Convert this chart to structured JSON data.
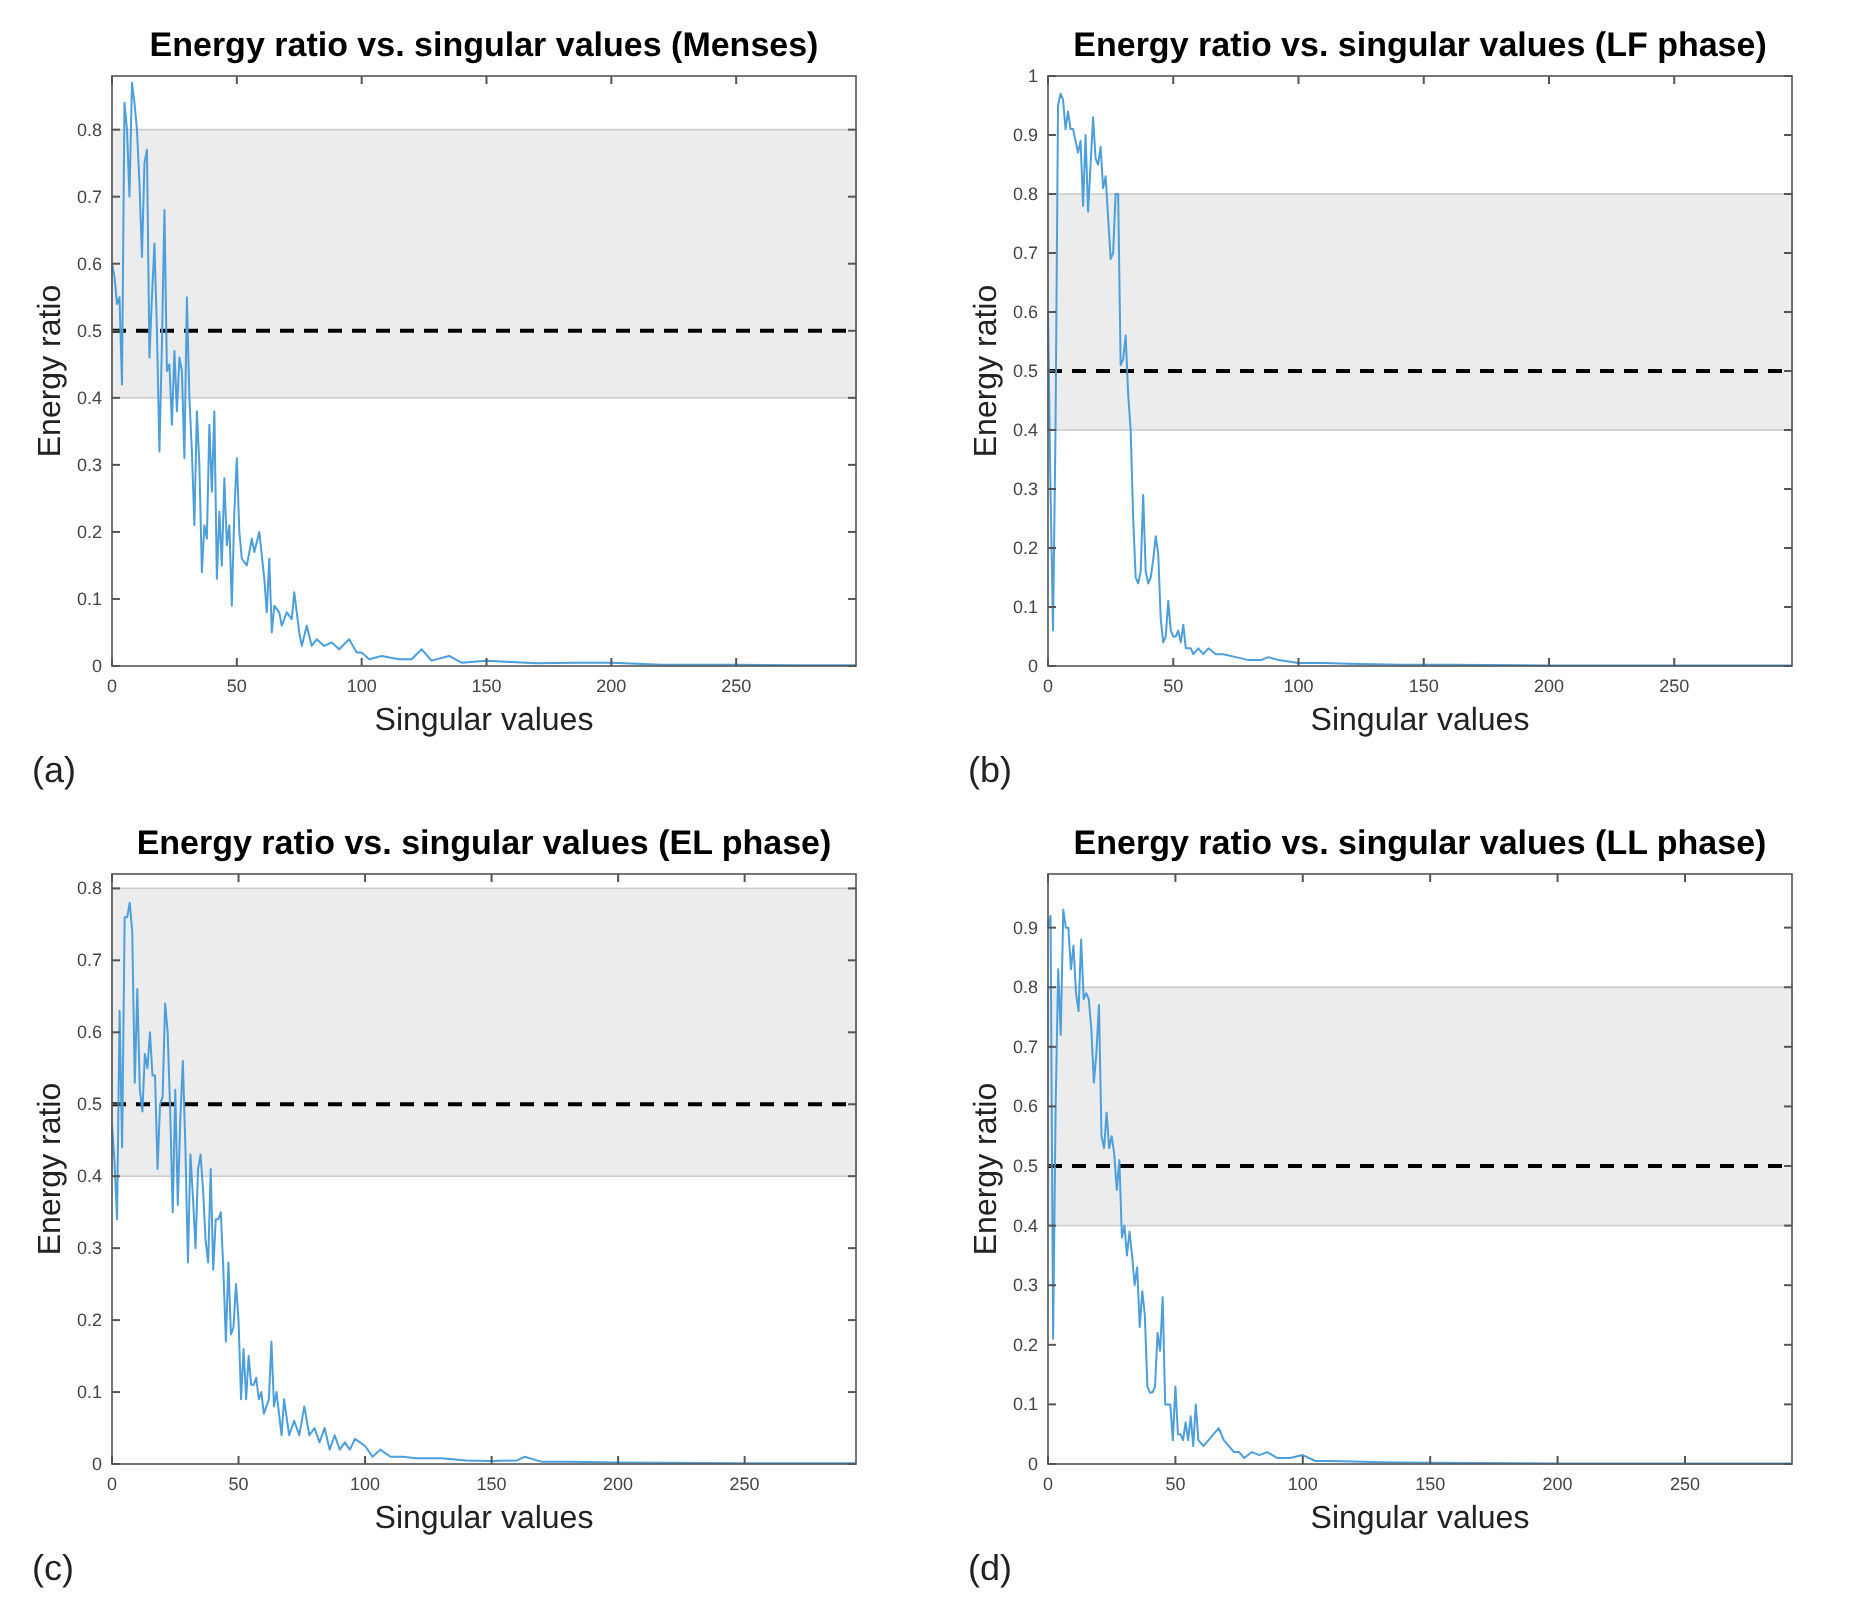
{
  "chart_data": [
    {
      "type": "line",
      "title": "Energy ratio vs. singular values (Menses)",
      "xlabel": "Singular values",
      "ylabel": "Energy ratio",
      "annotations": [
        "(a)"
      ],
      "xlim": [
        0,
        298
      ],
      "ylim": [
        0,
        0.88
      ],
      "xticks": [
        0,
        50,
        100,
        150,
        200,
        250
      ],
      "yticks": [
        0,
        0.1,
        0.2,
        0.3,
        0.4,
        0.5,
        0.6,
        0.7,
        0.8
      ],
      "bands": [
        {
          "axis": "y",
          "from": 0.4,
          "to": 0.8,
          "color": "#ececec"
        }
      ],
      "ref_lines": [
        {
          "axis": "y",
          "value": 0.5,
          "color": "#000000",
          "line_style": "dashed"
        }
      ],
      "series": [
        {
          "color": "#4d9fdb",
          "x": [
            0,
            1,
            2,
            3,
            4,
            5,
            6,
            7,
            8,
            9,
            10,
            11,
            12,
            13,
            14,
            15,
            16,
            17,
            18,
            19,
            20,
            21,
            22,
            23,
            24,
            25,
            26,
            27,
            28,
            29,
            30,
            31,
            32,
            33,
            34,
            35,
            36,
            37,
            38,
            39,
            40,
            41,
            42,
            43,
            44,
            45,
            46,
            47,
            48,
            49,
            50,
            51,
            52,
            54,
            56,
            57,
            59,
            61,
            62,
            63,
            64,
            65,
            67,
            68,
            70,
            72,
            73,
            75,
            76,
            78,
            80,
            82,
            85,
            88,
            91,
            95,
            98,
            100,
            103,
            108,
            115,
            120,
            124,
            128,
            135,
            140,
            150,
            160,
            170,
            185,
            200,
            220,
            250,
            275,
            298
          ],
          "values": [
            0.6,
            0.58,
            0.54,
            0.55,
            0.42,
            0.84,
            0.8,
            0.7,
            0.87,
            0.84,
            0.8,
            0.72,
            0.61,
            0.75,
            0.77,
            0.46,
            0.55,
            0.63,
            0.5,
            0.32,
            0.48,
            0.68,
            0.44,
            0.45,
            0.36,
            0.47,
            0.38,
            0.46,
            0.44,
            0.31,
            0.55,
            0.4,
            0.32,
            0.21,
            0.38,
            0.3,
            0.14,
            0.21,
            0.19,
            0.36,
            0.26,
            0.38,
            0.13,
            0.23,
            0.15,
            0.28,
            0.18,
            0.21,
            0.09,
            0.23,
            0.31,
            0.2,
            0.16,
            0.15,
            0.19,
            0.17,
            0.2,
            0.13,
            0.08,
            0.16,
            0.05,
            0.09,
            0.08,
            0.06,
            0.08,
            0.07,
            0.11,
            0.05,
            0.03,
            0.06,
            0.03,
            0.04,
            0.03,
            0.035,
            0.025,
            0.04,
            0.02,
            0.02,
            0.01,
            0.015,
            0.01,
            0.01,
            0.025,
            0.008,
            0.015,
            0.005,
            0.008,
            0.006,
            0.004,
            0.005,
            0.005,
            0.002,
            0.002,
            0.001,
            0.001
          ]
        }
      ]
    },
    {
      "type": "line",
      "title": "Energy ratio vs. singular values (LF phase)",
      "xlabel": "Singular values",
      "ylabel": "Energy ratio",
      "annotations": [
        "(b)"
      ],
      "xlim": [
        0,
        297
      ],
      "ylim": [
        0,
        1
      ],
      "xticks": [
        0,
        50,
        100,
        150,
        200,
        250
      ],
      "yticks": [
        0,
        0.1,
        0.2,
        0.3,
        0.4,
        0.5,
        0.6,
        0.7,
        0.8,
        0.9,
        1
      ],
      "bands": [
        {
          "axis": "y",
          "from": 0.4,
          "to": 0.8,
          "color": "#ececec"
        }
      ],
      "ref_lines": [
        {
          "axis": "y",
          "value": 0.5,
          "color": "#000000",
          "line_style": "dashed"
        }
      ],
      "series": [
        {
          "color": "#4d9fdb",
          "x": [
            0,
            1,
            2,
            3,
            4,
            5,
            6,
            7,
            8,
            9,
            10,
            11,
            12,
            13,
            14,
            15,
            16,
            17,
            18,
            19,
            20,
            21,
            22,
            23,
            24,
            25,
            26,
            27,
            28,
            29,
            30,
            31,
            32,
            33,
            34,
            35,
            36,
            37,
            38,
            39,
            40,
            41,
            42,
            43,
            44,
            45,
            46,
            47,
            48,
            49,
            50,
            51,
            52,
            53,
            54,
            55,
            57,
            58,
            60,
            62,
            64,
            67,
            70,
            75,
            80,
            85,
            88,
            92,
            100,
            110,
            120,
            140,
            160,
            200,
            250,
            297
          ],
          "values": [
            0.6,
            0.3,
            0.06,
            0.4,
            0.95,
            0.97,
            0.96,
            0.91,
            0.94,
            0.91,
            0.91,
            0.89,
            0.87,
            0.89,
            0.78,
            0.9,
            0.77,
            0.85,
            0.93,
            0.86,
            0.85,
            0.88,
            0.81,
            0.83,
            0.76,
            0.69,
            0.7,
            0.8,
            0.8,
            0.51,
            0.52,
            0.56,
            0.46,
            0.4,
            0.25,
            0.15,
            0.14,
            0.16,
            0.29,
            0.16,
            0.14,
            0.15,
            0.18,
            0.22,
            0.19,
            0.08,
            0.04,
            0.05,
            0.11,
            0.06,
            0.05,
            0.05,
            0.06,
            0.04,
            0.07,
            0.03,
            0.03,
            0.02,
            0.03,
            0.02,
            0.03,
            0.02,
            0.02,
            0.015,
            0.01,
            0.01,
            0.015,
            0.01,
            0.005,
            0.005,
            0.004,
            0.002,
            0.002,
            0.001,
            0.001,
            0.001
          ]
        }
      ]
    },
    {
      "type": "line",
      "title": "Energy ratio vs. singular values (EL phase)",
      "xlabel": "Singular values",
      "ylabel": "Energy ratio",
      "annotations": [
        "(c)"
      ],
      "xlim": [
        0,
        294
      ],
      "ylim": [
        0,
        0.82
      ],
      "xticks": [
        0,
        50,
        100,
        150,
        200,
        250
      ],
      "yticks": [
        0,
        0.1,
        0.2,
        0.3,
        0.4,
        0.5,
        0.6,
        0.7,
        0.8
      ],
      "bands": [
        {
          "axis": "y",
          "from": 0.4,
          "to": 0.8,
          "color": "#ececec"
        }
      ],
      "ref_lines": [
        {
          "axis": "y",
          "value": 0.5,
          "color": "#000000",
          "line_style": "dashed"
        }
      ],
      "series": [
        {
          "color": "#4d9fdb",
          "x": [
            0,
            1,
            2,
            3,
            4,
            5,
            6,
            7,
            8,
            9,
            10,
            11,
            12,
            13,
            14,
            15,
            16,
            17,
            18,
            19,
            20,
            21,
            22,
            23,
            24,
            25,
            26,
            27,
            28,
            29,
            30,
            31,
            32,
            33,
            34,
            35,
            36,
            37,
            38,
            39,
            40,
            41,
            42,
            43,
            44,
            45,
            46,
            47,
            48,
            49,
            50,
            51,
            52,
            53,
            54,
            55,
            56,
            57,
            58,
            59,
            60,
            61,
            62,
            63,
            64,
            65,
            66,
            67,
            68,
            70,
            72,
            74,
            76,
            78,
            80,
            82,
            84,
            86,
            88,
            90,
            92,
            94,
            96,
            98,
            100,
            103,
            106,
            110,
            115,
            120,
            130,
            140,
            150,
            160,
            163,
            170,
            180,
            200,
            250,
            294
          ],
          "values": [
            0.47,
            0.42,
            0.34,
            0.63,
            0.44,
            0.76,
            0.76,
            0.78,
            0.74,
            0.53,
            0.66,
            0.52,
            0.49,
            0.57,
            0.55,
            0.6,
            0.54,
            0.54,
            0.41,
            0.5,
            0.51,
            0.64,
            0.6,
            0.49,
            0.35,
            0.52,
            0.36,
            0.48,
            0.56,
            0.44,
            0.28,
            0.43,
            0.37,
            0.3,
            0.41,
            0.43,
            0.38,
            0.31,
            0.28,
            0.41,
            0.27,
            0.34,
            0.34,
            0.35,
            0.27,
            0.17,
            0.28,
            0.18,
            0.19,
            0.25,
            0.2,
            0.09,
            0.16,
            0.09,
            0.15,
            0.11,
            0.11,
            0.12,
            0.09,
            0.1,
            0.07,
            0.08,
            0.09,
            0.17,
            0.08,
            0.1,
            0.07,
            0.04,
            0.09,
            0.04,
            0.06,
            0.04,
            0.08,
            0.04,
            0.05,
            0.03,
            0.05,
            0.02,
            0.04,
            0.02,
            0.03,
            0.02,
            0.035,
            0.03,
            0.025,
            0.01,
            0.02,
            0.01,
            0.01,
            0.008,
            0.008,
            0.005,
            0.004,
            0.005,
            0.01,
            0.003,
            0.003,
            0.002,
            0.001,
            0.001
          ]
        }
      ]
    },
    {
      "type": "line",
      "title": "Energy ratio vs. singular values (LL phase)",
      "xlabel": "Singular values",
      "ylabel": "Energy ratio",
      "annotations": [
        "(d)"
      ],
      "xlim": [
        0,
        292
      ],
      "ylim": [
        0,
        0.99
      ],
      "xticks": [
        0,
        50,
        100,
        150,
        200,
        250
      ],
      "yticks": [
        0,
        0.1,
        0.2,
        0.3,
        0.4,
        0.5,
        0.6,
        0.7,
        0.8,
        0.9
      ],
      "bands": [
        {
          "axis": "y",
          "from": 0.4,
          "to": 0.8,
          "color": "#ececec"
        }
      ],
      "ref_lines": [
        {
          "axis": "y",
          "value": 0.5,
          "color": "#000000",
          "line_style": "dashed"
        }
      ],
      "series": [
        {
          "color": "#4d9fdb",
          "x": [
            0,
            1,
            2,
            3,
            4,
            5,
            6,
            7,
            8,
            9,
            10,
            11,
            12,
            13,
            14,
            15,
            16,
            17,
            18,
            19,
            20,
            21,
            22,
            23,
            24,
            25,
            26,
            27,
            28,
            29,
            30,
            31,
            32,
            33,
            34,
            35,
            36,
            37,
            38,
            39,
            40,
            41,
            42,
            43,
            44,
            45,
            46,
            47,
            48,
            49,
            50,
            51,
            52,
            53,
            54,
            55,
            56,
            57,
            58,
            59,
            61,
            63,
            65,
            67,
            69,
            71,
            73,
            75,
            77,
            80,
            83,
            86,
            90,
            95,
            100,
            105,
            110,
            120,
            130,
            150,
            200,
            250,
            292
          ],
          "values": [
            0.9,
            0.92,
            0.21,
            0.6,
            0.83,
            0.72,
            0.93,
            0.9,
            0.9,
            0.83,
            0.87,
            0.79,
            0.76,
            0.88,
            0.78,
            0.79,
            0.78,
            0.73,
            0.64,
            0.69,
            0.77,
            0.55,
            0.53,
            0.59,
            0.53,
            0.55,
            0.52,
            0.46,
            0.51,
            0.38,
            0.4,
            0.35,
            0.39,
            0.35,
            0.3,
            0.33,
            0.23,
            0.29,
            0.25,
            0.13,
            0.12,
            0.12,
            0.13,
            0.22,
            0.19,
            0.28,
            0.1,
            0.1,
            0.1,
            0.04,
            0.13,
            0.05,
            0.05,
            0.04,
            0.07,
            0.04,
            0.08,
            0.03,
            0.1,
            0.04,
            0.03,
            0.04,
            0.05,
            0.06,
            0.04,
            0.03,
            0.02,
            0.02,
            0.01,
            0.02,
            0.015,
            0.02,
            0.01,
            0.01,
            0.015,
            0.005,
            0.005,
            0.004,
            0.003,
            0.002,
            0.001,
            0.001,
            0.001
          ]
        }
      ]
    }
  ]
}
